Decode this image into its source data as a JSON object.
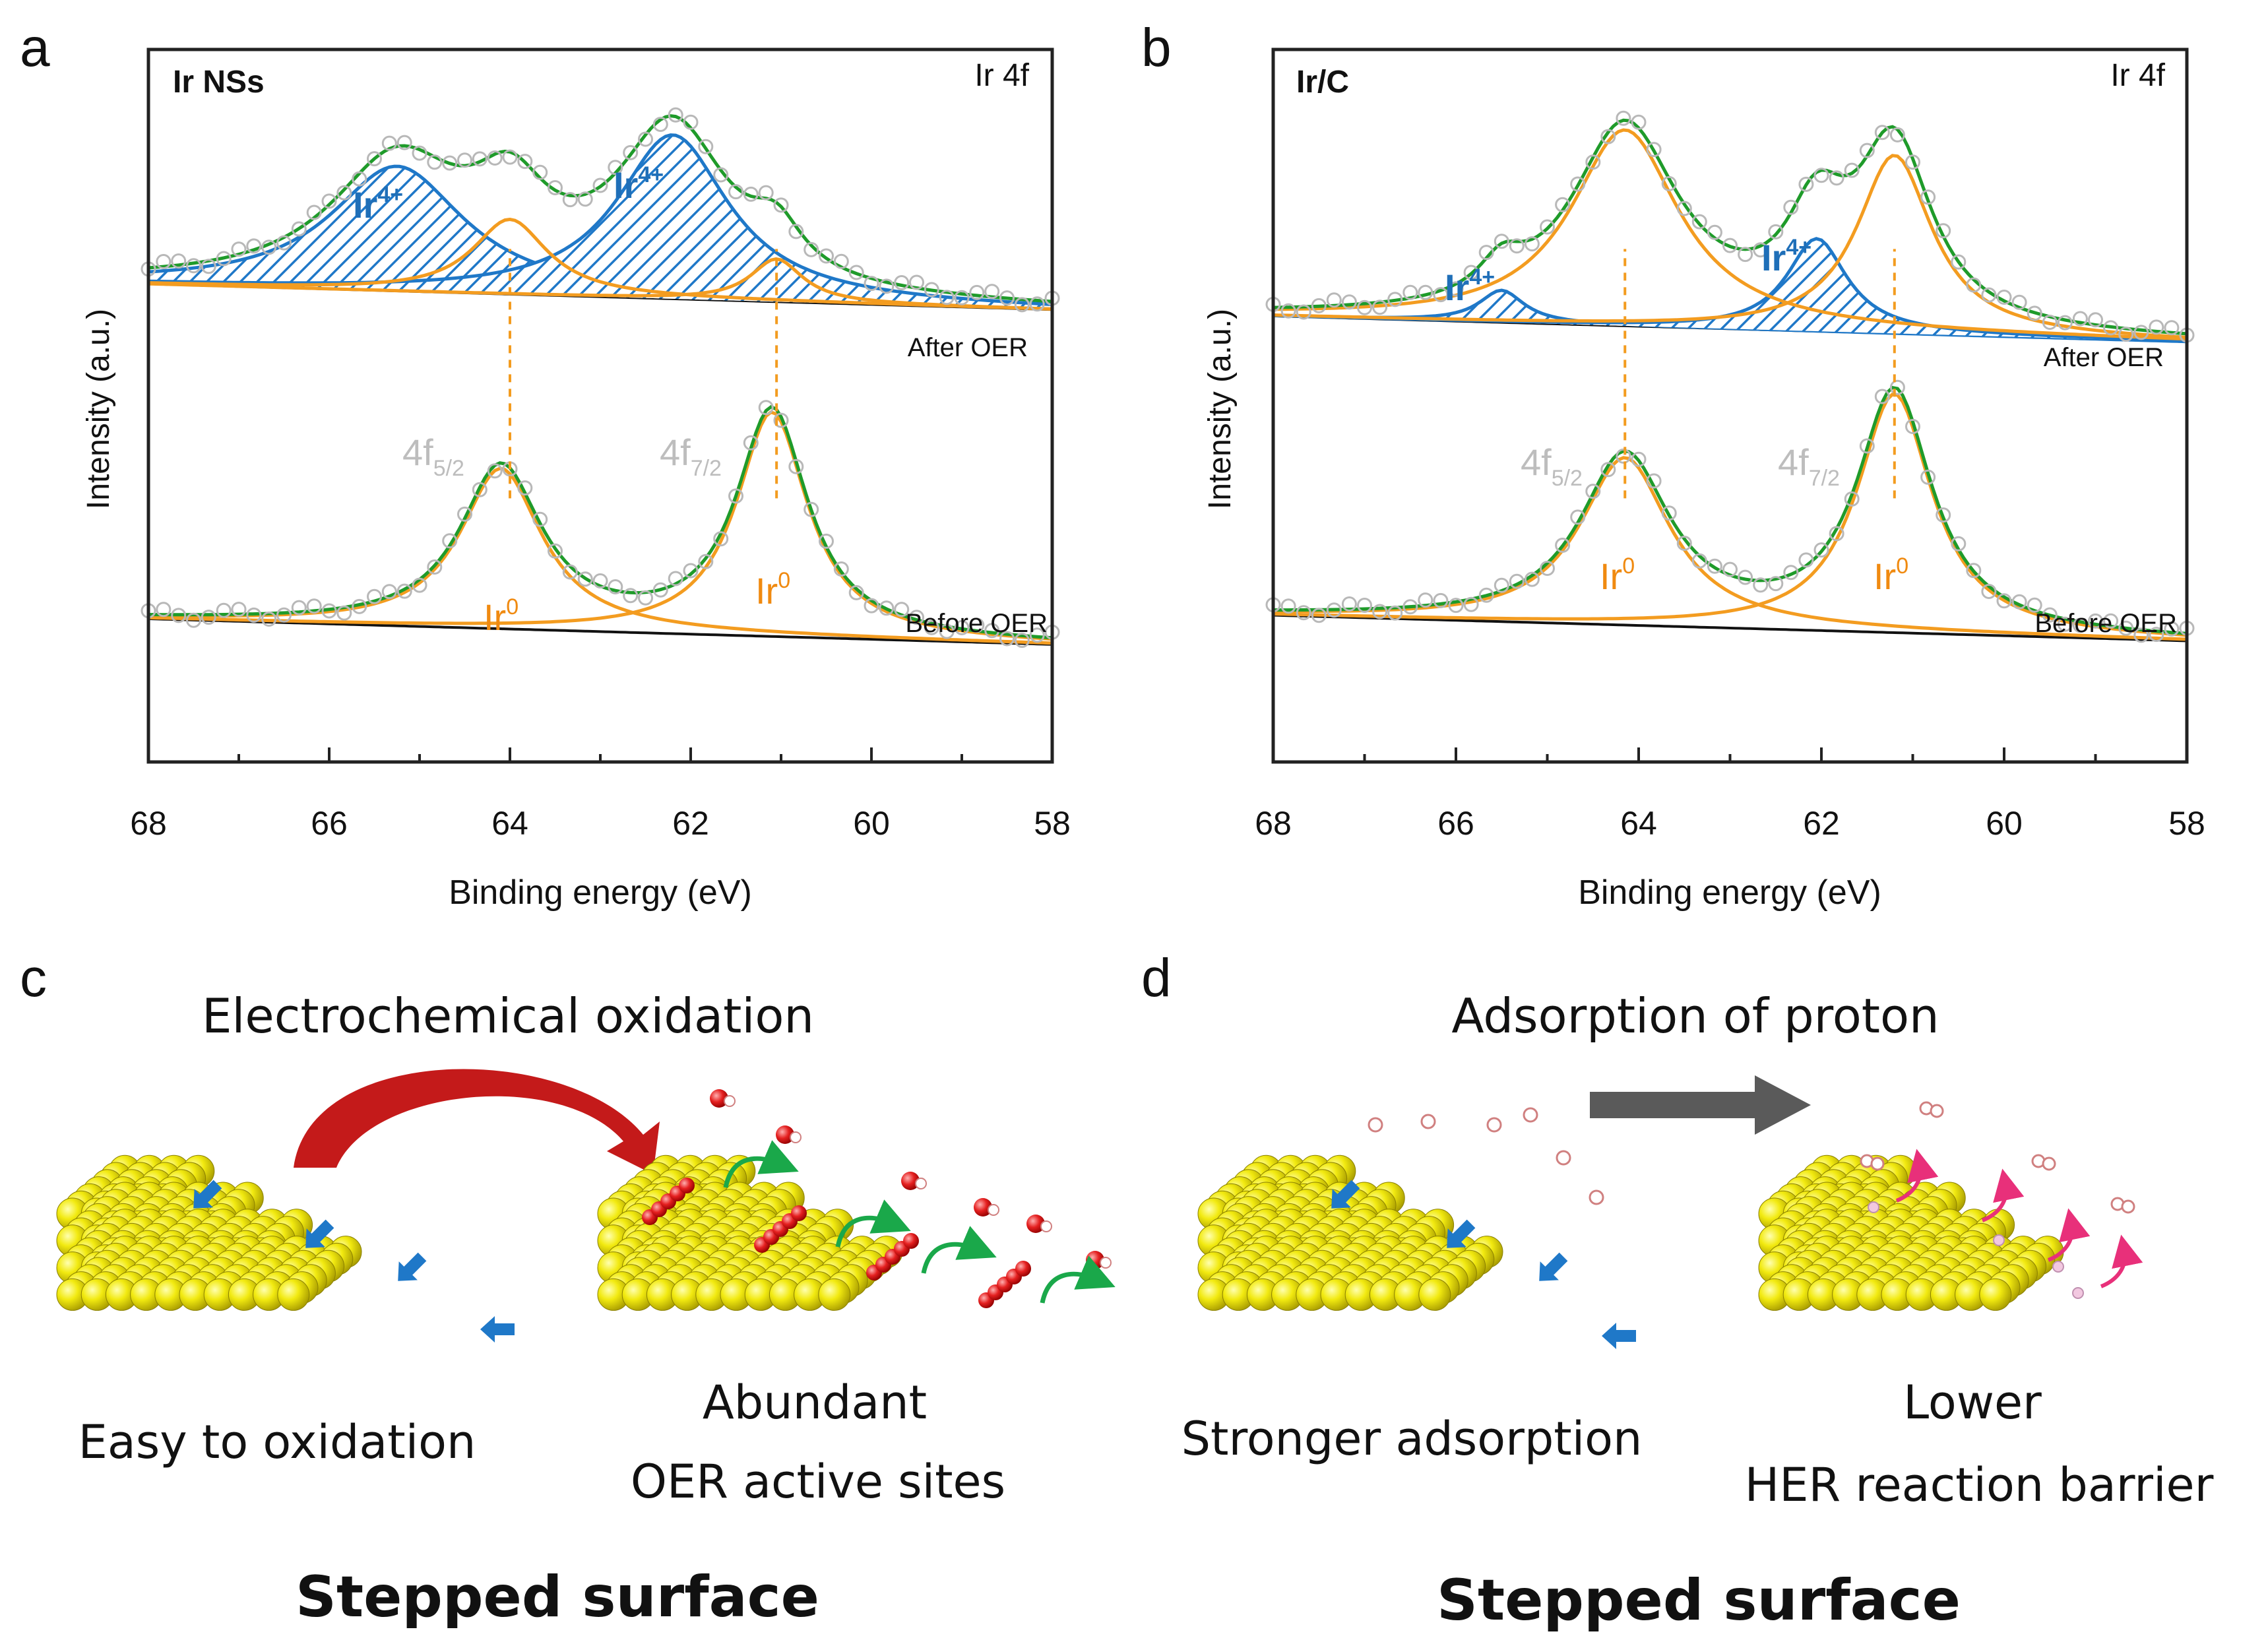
{
  "colors": {
    "axis": "#222222",
    "ir4": "#1f78c8",
    "ir4_label": "#1f6fb8",
    "ir0": "#f39c20",
    "ir0_label": "#f08a10",
    "envelope": "#1f9b2a",
    "baseline": "#111111",
    "points": "#b8b8b8",
    "orbital_label": "#bdbdbd",
    "sphere": "#e8e000",
    "oxygen": "#e02020",
    "arrow_red": "#c41a1a",
    "arrow_gray": "#5a5a5a",
    "arrow_blue": "#1f78c8",
    "arrow_green": "#1aa84a",
    "arrow_pink": "#e8307a"
  },
  "panel_a": {
    "letter": "a",
    "sample": "Ir NSs",
    "region": "Ir 4f",
    "ir4_label_base": "Ir",
    "ir4_label_sup": "4+",
    "ir0_label_base": "Ir",
    "ir0_label_sup": "0",
    "orbital_left_base": "4f",
    "orbital_left_sub": "5/2",
    "orbital_right_base": "4f",
    "orbital_right_sub": "7/2",
    "after_label": "After OER",
    "before_label": "Before OER",
    "ylabel": "Intensity (a.u.)",
    "xlabel": "Binding energy (eV)",
    "x_ticks": [
      "68",
      "66",
      "64",
      "62",
      "60",
      "58"
    ]
  },
  "panel_b": {
    "letter": "b",
    "sample": "Ir/C",
    "region": "Ir 4f",
    "ir4_label_base": "Ir",
    "ir4_label_sup": "4+",
    "ir0_label_base": "Ir",
    "ir0_label_sup": "0",
    "orbital_left_base": "4f",
    "orbital_left_sub": "5/2",
    "orbital_right_base": "4f",
    "orbital_right_sub": "7/2",
    "after_label": "After OER",
    "before_label": "Before OER",
    "ylabel": "Intensity (a.u.)",
    "xlabel": "Binding energy (eV)",
    "x_ticks": [
      "68",
      "66",
      "64",
      "62",
      "60",
      "58"
    ]
  },
  "panel_c": {
    "letter": "c",
    "process": "Electrochemical oxidation",
    "left_caption": "Easy to oxidation",
    "right_caption_line1": "Abundant",
    "right_caption_line2": "OER active sites",
    "surface": "Stepped surface"
  },
  "panel_d": {
    "letter": "d",
    "process": "Adsorption of proton",
    "left_caption": "Stronger adsorption",
    "right_caption_line1": "Lower",
    "right_caption_line2": "HER reaction barrier",
    "surface": "Stepped surface"
  },
  "chart_data": [
    {
      "type": "line",
      "panel": "a",
      "title": "Ir NSs — Ir 4f",
      "xlabel": "Binding energy (eV)",
      "ylabel": "Intensity (a.u.)",
      "xlim": [
        68,
        58
      ],
      "ylim": [
        0,
        1
      ],
      "series": [
        {
          "name": "After OER — Ir4+ 4f5/2",
          "center": 65.25,
          "height": 0.175,
          "width": 0.9,
          "offset": 0.64
        },
        {
          "name": "After OER — Ir4+ 4f7/2",
          "center": 62.2,
          "height": 0.23,
          "width": 0.75,
          "offset": 0.64
        },
        {
          "name": "After OER — Ir0 4f5/2",
          "center": 64.0,
          "height": 0.105,
          "width": 0.5,
          "offset": 0.64
        },
        {
          "name": "After OER — Ir0 4f7/2",
          "center": 61.05,
          "height": 0.06,
          "width": 0.35,
          "offset": 0.64
        },
        {
          "name": "Before OER — Ir0 4f5/2",
          "center": 64.1,
          "height": 0.225,
          "width": 0.55,
          "offset": 0.17
        },
        {
          "name": "Before OER — Ir0 4f7/2",
          "center": 61.1,
          "height": 0.315,
          "width": 0.48,
          "offset": 0.17
        }
      ],
      "reference_lines_eV": [
        64.0,
        61.05
      ]
    },
    {
      "type": "line",
      "panel": "b",
      "title": "Ir/C — Ir 4f",
      "xlabel": "Binding energy (eV)",
      "ylabel": "Intensity (a.u.)",
      "xlim": [
        68,
        58
      ],
      "ylim": [
        0,
        1
      ],
      "series": [
        {
          "name": "After OER — Ir4+ 4f5/2",
          "center": 65.5,
          "height": 0.045,
          "width": 0.3,
          "offset": 0.595
        },
        {
          "name": "After OER — Ir4+ 4f7/2",
          "center": 62.05,
          "height": 0.13,
          "width": 0.4,
          "offset": 0.595
        },
        {
          "name": "After OER — Ir0 4f5/2",
          "center": 64.15,
          "height": 0.275,
          "width": 0.72,
          "offset": 0.595
        },
        {
          "name": "After OER — Ir0 4f7/2",
          "center": 61.2,
          "height": 0.25,
          "width": 0.5,
          "offset": 0.595
        },
        {
          "name": "Before OER — Ir0 4f5/2",
          "center": 64.15,
          "height": 0.235,
          "width": 0.6,
          "offset": 0.175
        },
        {
          "name": "Before OER — Ir0 4f7/2",
          "center": 61.2,
          "height": 0.335,
          "width": 0.5,
          "offset": 0.175
        }
      ],
      "reference_lines_eV": [
        64.15,
        61.2
      ]
    }
  ]
}
